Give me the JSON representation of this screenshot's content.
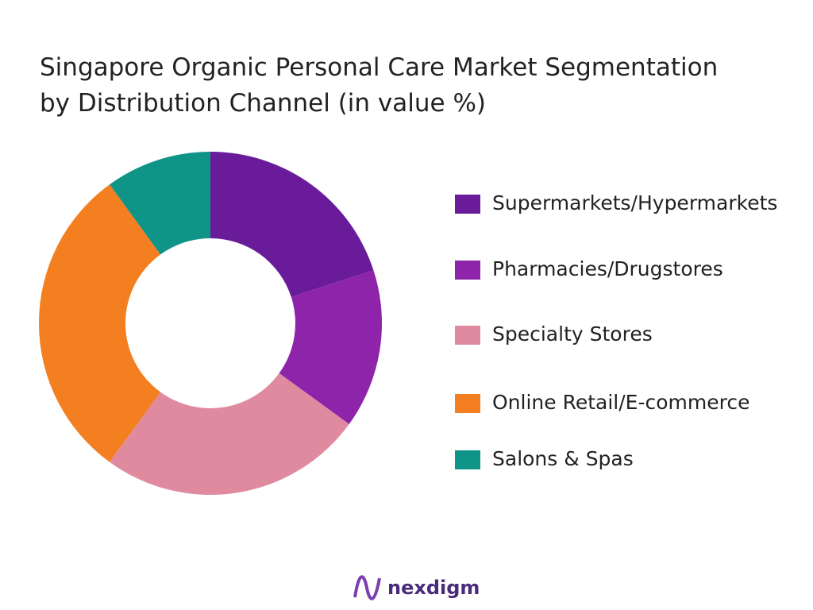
{
  "chart_data": {
    "type": "donut",
    "title": [
      "Singapore Organic Personal Care Market Segmentation",
      "by Distribution Channel (in value %)"
    ],
    "categories": [
      "Supermarkets/Hypermarkets",
      "Pharmacies/Drugstores",
      "Specialty Stores",
      "Online Retail/E-commerce",
      "Salons & Spas"
    ],
    "values": [
      20,
      15,
      25,
      30,
      10
    ],
    "colors": [
      "#6a1b9a",
      "#8e24aa",
      "#e08aa0",
      "#f37f21",
      "#0f9488"
    ]
  },
  "brand": "nexdigm"
}
